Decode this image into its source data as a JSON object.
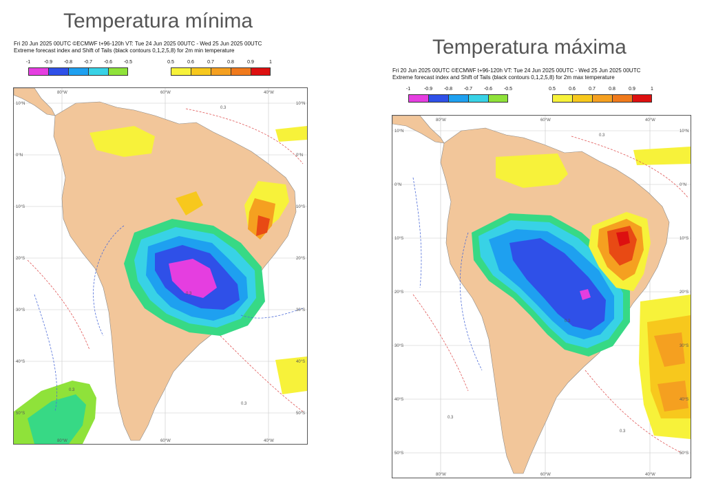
{
  "left": {
    "title": "Temperatura mínima",
    "header_line1": "Fri 20 Jun 2025 00UTC ©ECMWF t+96-120h   VT: Tue 24 Jun 2025 00UTC - Wed 25 Jun 2025 00UTC",
    "header_line2": "Extreme forecast index and Shift of Tails (black contours 0,1,2,5,8) for 2m min temperature",
    "cold_ticks": [
      "-1",
      "-0.9",
      "-0.8",
      "-0.7",
      "-0.6",
      "-0.5"
    ],
    "warm_ticks": [
      "0.5",
      "0.6",
      "0.7",
      "0.8",
      "0.9",
      "1"
    ],
    "lon_labels": [
      "80°W",
      "60°W",
      "40°W"
    ],
    "lat_labels": [
      "10°N",
      "0°N",
      "10°S",
      "20°S",
      "30°S",
      "40°S",
      "50°S"
    ],
    "contour_label": "0.3"
  },
  "right": {
    "title": "Temperatura máxima",
    "header_line1": "Fri 20 Jun 2025 00UTC ©ECMWF t+96-120h   VT: Tue 24 Jun 2025 00UTC - Wed 25 Jun 2025 00UTC",
    "header_line2": "Extreme forecast index and Shift of Tails (black contours 0,1,2,5,8) for 2m max temperature",
    "cold_ticks": [
      "-1",
      "-0.9",
      "-0.8",
      "-0.7",
      "-0.6",
      "-0.5"
    ],
    "warm_ticks": [
      "0.5",
      "0.6",
      "0.7",
      "0.8",
      "0.9",
      "1"
    ],
    "lon_labels": [
      "80°W",
      "60°W",
      "40°W"
    ],
    "lat_labels": [
      "10°N",
      "0°N",
      "10°S",
      "20°S",
      "30°S",
      "40°S",
      "50°S"
    ],
    "contour_label": "0.3"
  },
  "colors": {
    "cold_scale": [
      "#e53ee0",
      "#2f50e8",
      "#1ea0f0",
      "#38d2e6",
      "#37d985",
      "#8fe23a"
    ],
    "warm_scale": [
      "#f7f23a",
      "#f7c81d",
      "#f5a020",
      "#f07a1c",
      "#e84a14",
      "#dd1010"
    ],
    "land": "#f2c69a",
    "ocean": "#ffffff",
    "contour_red": "#e05555",
    "contour_blue": "#4c6bd8"
  }
}
